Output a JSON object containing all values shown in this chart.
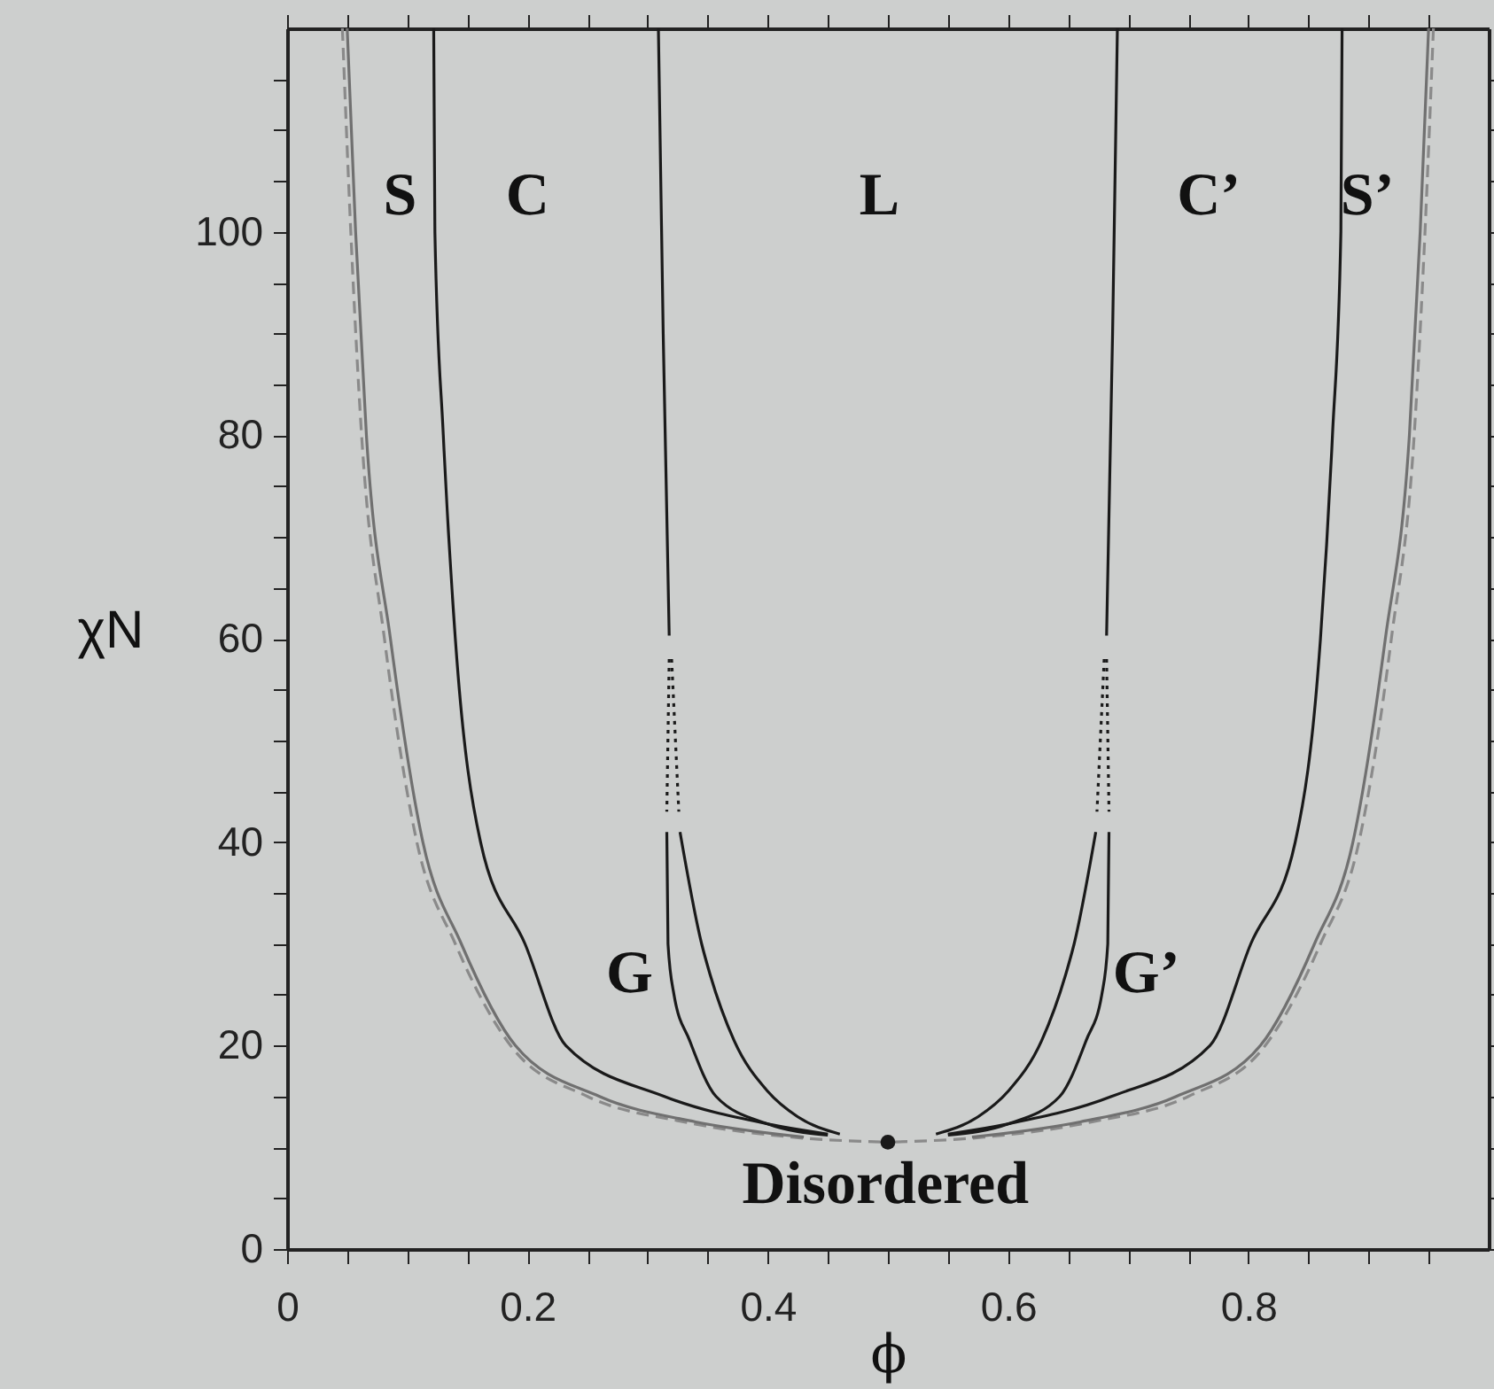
{
  "chart_data": {
    "type": "line",
    "xlabel": "ϕ",
    "ylabel": "χN",
    "xlim": [
      0,
      1
    ],
    "ylim": [
      0,
      120
    ],
    "xticks": [
      0,
      {
        "value": 0.05,
        "label": null
      },
      {
        "value": 0.1,
        "label": null
      },
      {
        "value": 0.15,
        "label": null
      },
      0.2,
      {
        "value": 0.25,
        "label": null
      },
      {
        "value": 0.3,
        "label": null
      },
      {
        "value": 0.35,
        "label": null
      },
      0.4,
      {
        "value": 0.45,
        "label": null
      },
      {
        "value": 0.5,
        "label": null
      },
      {
        "value": 0.55,
        "label": null
      },
      0.6,
      {
        "value": 0.65,
        "label": null
      },
      {
        "value": 0.7,
        "label": null
      },
      {
        "value": 0.75,
        "label": null
      },
      0.8,
      {
        "value": 0.85,
        "label": null
      },
      {
        "value": 0.9,
        "label": null
      },
      {
        "value": 0.95,
        "label": null
      }
    ],
    "yticks": [
      0,
      {
        "value": 5,
        "label": null
      },
      {
        "value": 10,
        "label": null
      },
      {
        "value": 15,
        "label": null
      },
      20,
      {
        "value": 25,
        "label": null
      },
      {
        "value": 30,
        "label": null
      },
      {
        "value": 35,
        "label": null
      },
      40,
      {
        "value": 45,
        "label": null
      },
      {
        "value": 50,
        "label": null
      },
      {
        "value": 55,
        "label": null
      },
      60,
      {
        "value": 65,
        "label": null
      },
      {
        "value": 70,
        "label": null
      },
      {
        "value": 75,
        "label": null
      },
      80,
      {
        "value": 85,
        "label": null
      },
      {
        "value": 90,
        "label": null
      },
      {
        "value": 95,
        "label": null
      },
      100,
      {
        "value": 105,
        "label": null
      },
      {
        "value": 110,
        "label": null
      },
      {
        "value": 115,
        "label": null
      }
    ],
    "grid": false,
    "series": [
      {
        "color": "#8a8a8a",
        "line_style": "dashed",
        "x": [
          0.046,
          0.053,
          0.062,
          0.081,
          0.108,
          0.14,
          0.186,
          0.25,
          0.33,
          0.42,
          0.5
        ],
        "values": [
          120,
          100,
          80,
          60,
          40,
          30,
          20,
          15,
          12.5,
          11,
          10.5
        ]
      },
      {
        "color": "#8a8a8a",
        "line_style": "dashed",
        "x": [
          0.954,
          0.947,
          0.938,
          0.919,
          0.892,
          0.86,
          0.814,
          0.75,
          0.67,
          0.58,
          0.5
        ],
        "values": [
          120,
          100,
          80,
          60,
          40,
          30,
          20,
          15,
          12.5,
          11,
          10.5
        ]
      },
      {
        "color": "#707070",
        "line_style": "solid",
        "x": [
          0.05,
          0.057,
          0.066,
          0.086,
          0.113,
          0.145,
          0.19,
          0.26,
          0.34,
          0.43
        ],
        "values": [
          120,
          100,
          80,
          60,
          40,
          30,
          20,
          15,
          12.5,
          11
        ]
      },
      {
        "color": "#707070",
        "line_style": "solid",
        "x": [
          0.95,
          0.943,
          0.934,
          0.914,
          0.887,
          0.855,
          0.81,
          0.74,
          0.66,
          0.57
        ],
        "values": [
          120,
          100,
          80,
          60,
          40,
          30,
          20,
          15,
          12.5,
          11
        ]
      },
      {
        "color": "#1a1a1a",
        "line_style": "solid",
        "x": [
          0.122,
          0.123,
          0.13,
          0.14,
          0.161,
          0.198,
          0.232,
          0.314,
          0.4,
          0.45
        ],
        "values": [
          120,
          100,
          80,
          60,
          40,
          30,
          20,
          15,
          12.3,
          11.3
        ]
      },
      {
        "color": "#1a1a1a",
        "line_style": "solid",
        "x": [
          0.878,
          0.877,
          0.87,
          0.86,
          0.839,
          0.802,
          0.768,
          0.686,
          0.6,
          0.55
        ],
        "values": [
          120,
          100,
          80,
          60,
          40,
          30,
          20,
          15,
          12.3,
          11.3
        ]
      },
      {
        "color": "#1a1a1a",
        "line_style": "solid",
        "x": [
          0.309,
          0.313,
          0.318
        ],
        "values": [
          120,
          90,
          60.3
        ]
      },
      {
        "color": "#1a1a1a",
        "line_style": "solid",
        "x": [
          0.691,
          0.687,
          0.682
        ],
        "values": [
          120,
          90,
          60.3
        ]
      },
      {
        "color": "#1a1a1a",
        "line_style": "dotted",
        "x": [
          0.318,
          0.316
        ],
        "values": [
          58,
          43
        ]
      },
      {
        "color": "#1a1a1a",
        "line_style": "dotted",
        "x": [
          0.32,
          0.326
        ],
        "values": [
          58,
          43
        ]
      },
      {
        "color": "#1a1a1a",
        "line_style": "dotted",
        "x": [
          0.682,
          0.684
        ],
        "values": [
          58,
          43
        ]
      },
      {
        "color": "#1a1a1a",
        "line_style": "dotted",
        "x": [
          0.68,
          0.674
        ],
        "values": [
          58,
          43
        ]
      },
      {
        "color": "#1a1a1a",
        "line_style": "solid",
        "x": [
          0.316,
          0.317,
          0.322,
          0.335,
          0.357,
          0.4,
          0.45
        ],
        "values": [
          41,
          30,
          25,
          20.5,
          15,
          12.3,
          11.2
        ]
      },
      {
        "color": "#1a1a1a",
        "line_style": "solid",
        "x": [
          0.684,
          0.683,
          0.678,
          0.665,
          0.643,
          0.6,
          0.55
        ],
        "values": [
          41,
          30,
          25,
          20.5,
          15,
          12.3,
          11.2
        ]
      },
      {
        "color": "#1a1a1a",
        "line_style": "solid",
        "x": [
          0.327,
          0.345,
          0.352,
          0.372,
          0.4,
          0.425,
          0.46
        ],
        "values": [
          41,
          30,
          27,
          20.5,
          15.5,
          13,
          11.3
        ]
      },
      {
        "color": "#1a1a1a",
        "line_style": "solid",
        "x": [
          0.673,
          0.655,
          0.648,
          0.628,
          0.6,
          0.575,
          0.54
        ],
        "values": [
          41,
          30,
          27,
          20.5,
          15.5,
          13,
          11.3
        ]
      },
      {
        "type": "scatter",
        "marker": "circle",
        "color": "#1a1a1a",
        "x": [
          0.5
        ],
        "values": [
          10.5
        ]
      }
    ],
    "annotations": [
      "S",
      "C",
      "L",
      "C’",
      "S’",
      "G",
      "G’",
      "Disordered"
    ]
  }
}
